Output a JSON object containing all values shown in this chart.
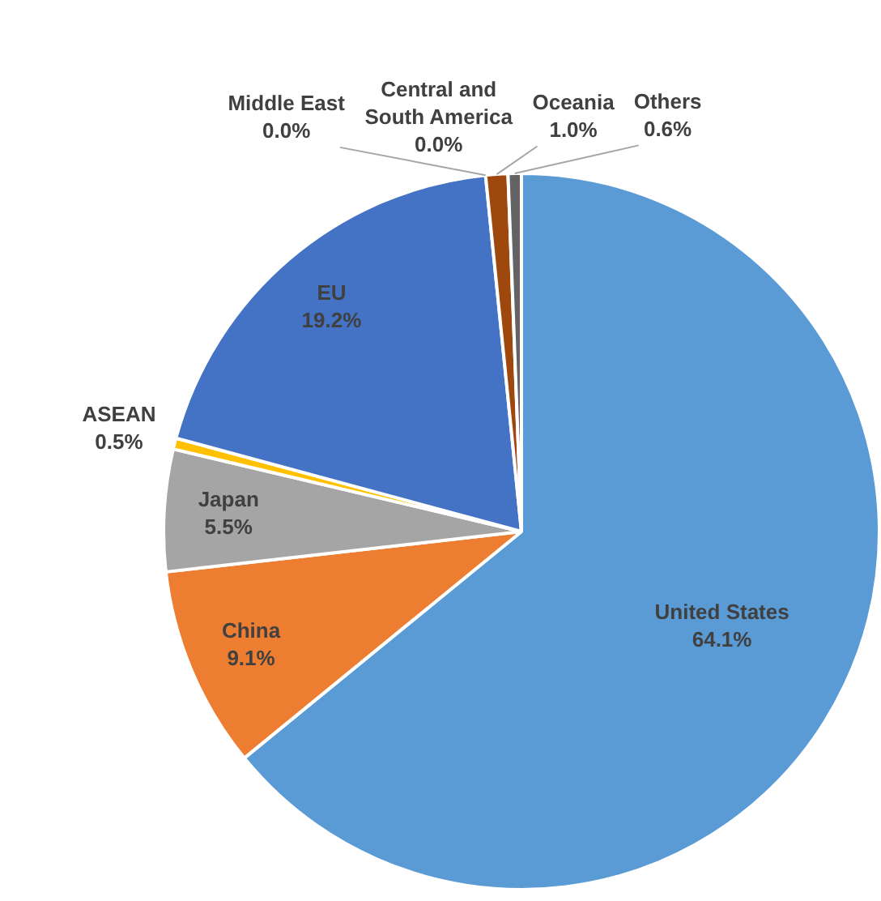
{
  "chart_data": {
    "type": "pie",
    "categories": [
      "United States",
      "China",
      "Japan",
      "ASEAN",
      "EU",
      "Middle East",
      "Central and South America",
      "Oceania",
      "Others"
    ],
    "values": [
      64.1,
      9.1,
      5.5,
      0.5,
      19.2,
      0.0,
      0.0,
      1.0,
      0.6
    ],
    "colors": [
      "#5b9bd5",
      "#ed7d31",
      "#a5a5a5",
      "#ffc000",
      "#4472c4",
      "#70ad47",
      "#264478",
      "#9e480e",
      "#636363"
    ],
    "value_labels": [
      "64.1%",
      "9.1%",
      "5.5%",
      "0.5%",
      "19.2%",
      "0.0%",
      "0.0%",
      "1.0%",
      "0.6%"
    ],
    "legend": false
  }
}
